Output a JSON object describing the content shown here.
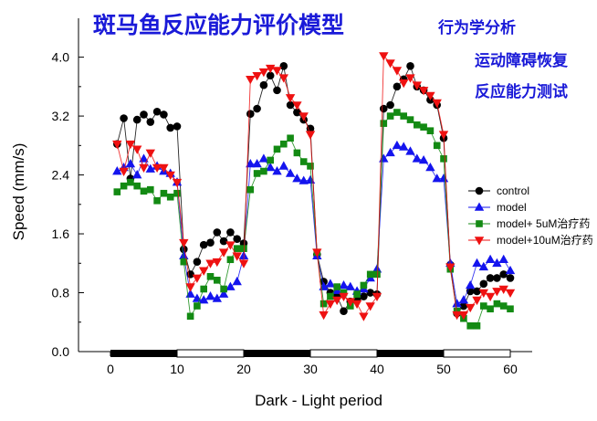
{
  "header": {
    "title": "斑马鱼反应能力评价模型",
    "notes": [
      "行为学分析",
      "运动障碍恢复",
      "反应能力测试"
    ]
  },
  "colors": {
    "title": "#1a1ad8",
    "control": "#000000",
    "model": "#1414ee",
    "model_5uM": "#138a13",
    "model_10uM": "#ee1111",
    "light_dark_bar": "#000000"
  },
  "chart_data": {
    "type": "line",
    "xlabel": "Dark - Light period",
    "ylabel": "Speed (mm/s)",
    "xlim": [
      -5,
      62
    ],
    "ylim": [
      0,
      4.4
    ],
    "xticks": [
      0,
      10,
      20,
      30,
      40,
      50,
      60
    ],
    "yticks": [
      0.0,
      0.8,
      1.6,
      2.4,
      3.2,
      4.0
    ],
    "ytick_labels": [
      "0.0",
      "0.8",
      "1.6",
      "2.4",
      "3.2",
      "4.0"
    ],
    "grid": false,
    "legend_position": "right",
    "dark_periods": [
      [
        0,
        10
      ],
      [
        20,
        30
      ],
      [
        40,
        50
      ]
    ],
    "light_periods": [
      [
        10,
        20
      ],
      [
        30,
        40
      ],
      [
        50,
        60
      ]
    ],
    "x": [
      1,
      2,
      3,
      4,
      5,
      6,
      7,
      8,
      9,
      10,
      11,
      12,
      13,
      14,
      15,
      16,
      17,
      18,
      19,
      20,
      21,
      22,
      23,
      24,
      25,
      26,
      27,
      28,
      29,
      30,
      31,
      32,
      33,
      34,
      35,
      36,
      37,
      38,
      39,
      40,
      41,
      42,
      43,
      44,
      45,
      46,
      47,
      48,
      49,
      50,
      51,
      52,
      53,
      54,
      55,
      56,
      57,
      58,
      59,
      60
    ],
    "series": [
      {
        "name": "control",
        "marker": "circle",
        "color": "#000000",
        "values": [
          2.82,
          3.17,
          2.35,
          3.15,
          3.22,
          3.12,
          3.26,
          3.22,
          3.04,
          3.06,
          1.39,
          1.05,
          1.22,
          1.45,
          1.48,
          1.62,
          1.5,
          1.62,
          1.53,
          1.47,
          3.23,
          3.3,
          3.62,
          3.75,
          3.55,
          3.88,
          3.35,
          3.25,
          3.15,
          3.03,
          1.32,
          0.95,
          0.8,
          0.75,
          0.55,
          0.68,
          0.7,
          0.75,
          0.8,
          0.78,
          3.3,
          3.35,
          3.6,
          3.7,
          3.88,
          3.6,
          3.55,
          3.42,
          3.35,
          2.9,
          1.18,
          0.52,
          0.62,
          0.82,
          0.82,
          0.92,
          1.0,
          1.0,
          1.05,
          1.0
        ]
      },
      {
        "name": "model",
        "marker": "triangle-up",
        "color": "#1414ee",
        "values": [
          2.45,
          2.5,
          2.55,
          2.4,
          2.62,
          2.48,
          2.52,
          2.45,
          2.42,
          2.3,
          1.3,
          0.78,
          0.72,
          0.7,
          0.75,
          0.72,
          0.78,
          0.88,
          0.95,
          1.3,
          2.55,
          2.55,
          2.62,
          2.5,
          2.45,
          2.52,
          2.42,
          2.35,
          2.32,
          2.33,
          1.3,
          0.88,
          0.92,
          0.83,
          0.9,
          0.88,
          0.82,
          0.85,
          1.0,
          1.12,
          2.62,
          2.7,
          2.8,
          2.78,
          2.72,
          2.62,
          2.6,
          2.5,
          2.35,
          2.35,
          1.2,
          0.65,
          0.7,
          0.9,
          1.2,
          1.15,
          1.25,
          1.2,
          1.25,
          1.1
        ]
      },
      {
        "name": "model+ 5uM治疗药",
        "marker": "square",
        "color": "#138a13",
        "values": [
          2.17,
          2.25,
          2.3,
          2.25,
          2.18,
          2.2,
          2.05,
          2.15,
          2.1,
          2.15,
          1.22,
          0.48,
          0.62,
          0.85,
          1.02,
          0.97,
          0.85,
          1.25,
          1.4,
          1.4,
          2.2,
          2.42,
          2.45,
          2.6,
          2.75,
          2.82,
          2.9,
          2.7,
          2.58,
          2.52,
          1.35,
          0.65,
          0.75,
          0.88,
          0.8,
          0.62,
          0.78,
          0.9,
          1.05,
          1.05,
          3.1,
          3.2,
          3.25,
          3.2,
          3.15,
          3.08,
          3.05,
          3.0,
          2.8,
          2.62,
          1.12,
          0.55,
          0.45,
          0.35,
          0.35,
          0.62,
          0.58,
          0.65,
          0.62,
          0.58
        ]
      },
      {
        "name": "model+10uM治疗药",
        "marker": "triangle-down",
        "color": "#ee1111",
        "values": [
          2.82,
          2.45,
          2.82,
          2.75,
          2.5,
          2.7,
          2.5,
          2.5,
          2.4,
          2.3,
          1.48,
          0.88,
          1.0,
          1.1,
          1.2,
          1.22,
          1.35,
          1.45,
          1.3,
          1.2,
          3.7,
          3.75,
          3.8,
          3.85,
          3.82,
          3.72,
          3.45,
          3.35,
          3.2,
          2.95,
          1.35,
          0.5,
          0.65,
          0.7,
          0.75,
          0.68,
          0.65,
          0.48,
          0.62,
          0.75,
          4.02,
          3.92,
          3.82,
          3.65,
          3.72,
          3.62,
          3.55,
          3.48,
          3.38,
          2.95,
          1.15,
          0.5,
          0.5,
          0.6,
          0.7,
          0.8,
          0.75,
          0.82,
          0.85,
          0.8
        ]
      }
    ]
  }
}
